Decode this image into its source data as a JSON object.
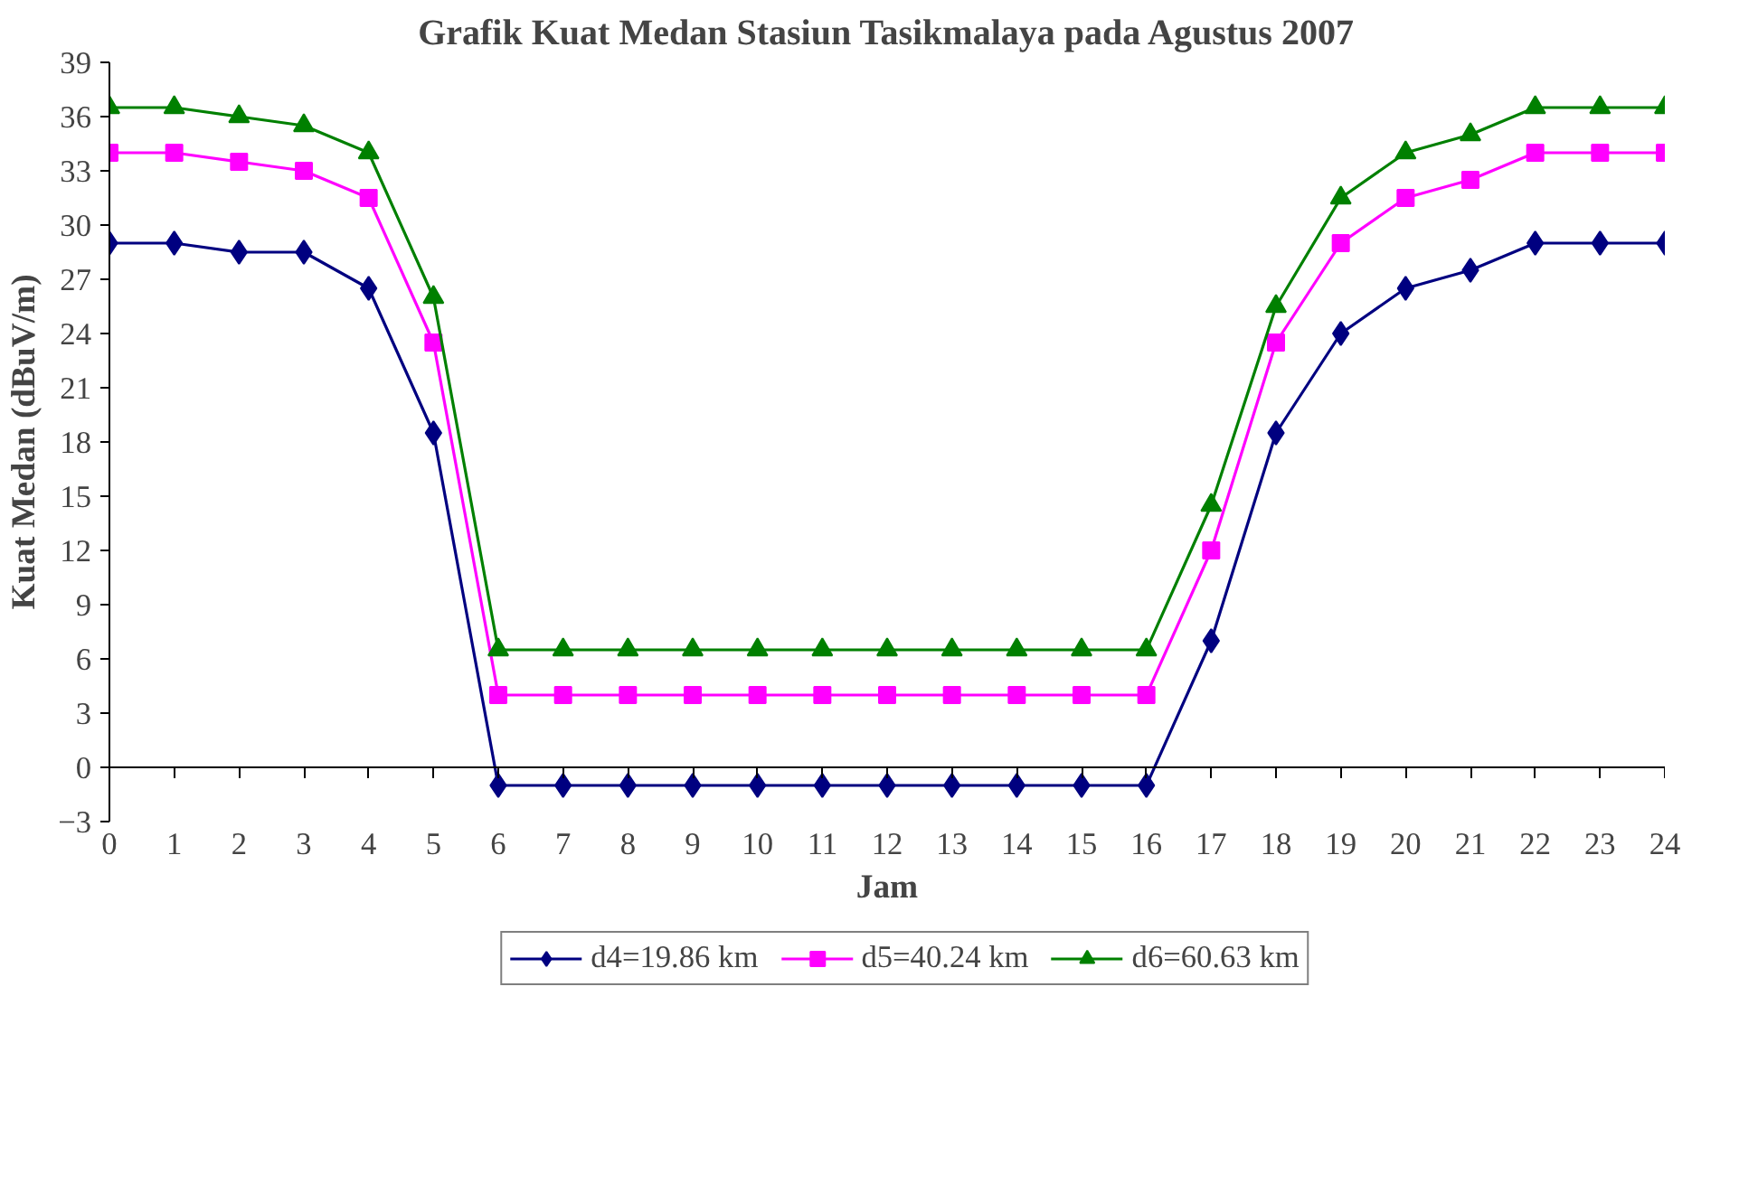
{
  "chart_data": {
    "type": "line",
    "title": "Grafik Kuat Medan Stasiun Tasikmalaya pada Agustus 2007",
    "xlabel": "Jam",
    "ylabel": "Kuat Medan (dBuV/m)",
    "x": [
      0,
      1,
      2,
      3,
      4,
      5,
      6,
      7,
      8,
      9,
      10,
      11,
      12,
      13,
      14,
      15,
      16,
      17,
      18,
      19,
      20,
      21,
      22,
      23,
      24
    ],
    "xlim": [
      0,
      24
    ],
    "xticks": [
      0,
      1,
      2,
      3,
      4,
      5,
      6,
      7,
      8,
      9,
      10,
      11,
      12,
      13,
      14,
      15,
      16,
      17,
      18,
      19,
      20,
      21,
      22,
      23,
      24
    ],
    "ylim": [
      -3,
      39
    ],
    "yticks": [
      -3,
      0,
      3,
      6,
      9,
      12,
      15,
      18,
      21,
      24,
      27,
      30,
      33,
      36,
      39
    ],
    "grid": false,
    "legend": "bottom",
    "series": [
      {
        "name": "d4=19.86 km",
        "color": "#000080",
        "marker": "diamond",
        "values": [
          29,
          29,
          28.5,
          28.5,
          26.5,
          18.5,
          -1,
          -1,
          -1,
          -1,
          -1,
          -1,
          -1,
          -1,
          -1,
          -1,
          -1,
          7,
          18.5,
          24,
          26.5,
          27.5,
          29,
          29,
          29
        ]
      },
      {
        "name": "d5=40.24 km",
        "color": "#ff00ff",
        "marker": "square",
        "values": [
          34,
          34,
          33.5,
          33,
          31.5,
          23.5,
          4,
          4,
          4,
          4,
          4,
          4,
          4,
          4,
          4,
          4,
          4,
          12,
          23.5,
          29,
          31.5,
          32.5,
          34,
          34,
          34
        ]
      },
      {
        "name": "d6=60.63 km",
        "color": "#008000",
        "marker": "triangle",
        "values": [
          36.5,
          36.5,
          36,
          35.5,
          34,
          26,
          6.5,
          6.5,
          6.5,
          6.5,
          6.5,
          6.5,
          6.5,
          6.5,
          6.5,
          6.5,
          6.5,
          14.5,
          25.5,
          31.5,
          34,
          35,
          36.5,
          36.5,
          36.5
        ]
      }
    ]
  }
}
